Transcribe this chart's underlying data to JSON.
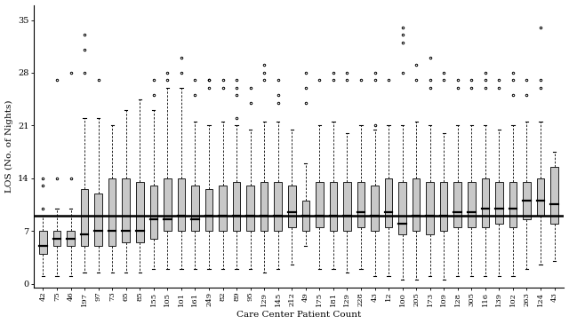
{
  "centers": [
    "42",
    "75",
    "46",
    "197",
    "97",
    "73",
    "65",
    "85",
    "155",
    "105",
    "101",
    "161",
    "249",
    "82",
    "89",
    "95",
    "129",
    "145",
    "212",
    "49",
    "175",
    "181",
    "129",
    "228",
    "43",
    "12",
    "100",
    "205",
    "173",
    "109",
    "128",
    "305",
    "116",
    "139",
    "102",
    "263",
    "124",
    "43"
  ],
  "global_median": 9.0,
  "box_data": [
    {
      "med": 5.0,
      "q1": 4.0,
      "q3": 7.0,
      "whislo": 1.0,
      "whishi": 9.0,
      "fliers": [
        10,
        13,
        14
      ]
    },
    {
      "med": 6.0,
      "q1": 5.0,
      "q3": 7.0,
      "whislo": 1.0,
      "whishi": 10.0,
      "fliers": [
        14,
        27
      ]
    },
    {
      "med": 6.0,
      "q1": 5.0,
      "q3": 7.0,
      "whislo": 1.0,
      "whishi": 10.0,
      "fliers": [
        14,
        28
      ]
    },
    {
      "med": 6.5,
      "q1": 5.0,
      "q3": 12.5,
      "whislo": 1.5,
      "whishi": 22.0,
      "fliers": [
        28,
        31,
        33
      ]
    },
    {
      "med": 7.0,
      "q1": 5.0,
      "q3": 12.0,
      "whislo": 1.5,
      "whishi": 22.0,
      "fliers": [
        27
      ]
    },
    {
      "med": 7.0,
      "q1": 5.0,
      "q3": 14.0,
      "whislo": 1.5,
      "whishi": 21.0,
      "fliers": []
    },
    {
      "med": 7.0,
      "q1": 5.5,
      "q3": 14.0,
      "whislo": 1.5,
      "whishi": 23.0,
      "fliers": []
    },
    {
      "med": 7.0,
      "q1": 5.5,
      "q3": 13.5,
      "whislo": 1.5,
      "whishi": 24.5,
      "fliers": []
    },
    {
      "med": 8.5,
      "q1": 6.0,
      "q3": 13.0,
      "whislo": 2.0,
      "whishi": 23.0,
      "fliers": [
        25,
        27
      ]
    },
    {
      "med": 8.5,
      "q1": 7.0,
      "q3": 14.0,
      "whislo": 2.0,
      "whishi": 26.0,
      "fliers": [
        27,
        28
      ]
    },
    {
      "med": 9.0,
      "q1": 7.0,
      "q3": 14.0,
      "whislo": 2.0,
      "whishi": 26.0,
      "fliers": [
        28,
        30
      ]
    },
    {
      "med": 8.5,
      "q1": 7.0,
      "q3": 13.0,
      "whislo": 2.0,
      "whishi": 21.5,
      "fliers": [
        25,
        27
      ]
    },
    {
      "med": 9.0,
      "q1": 7.0,
      "q3": 12.5,
      "whislo": 2.0,
      "whishi": 21.0,
      "fliers": [
        26,
        27,
        27
      ]
    },
    {
      "med": 9.0,
      "q1": 7.0,
      "q3": 13.0,
      "whislo": 2.0,
      "whishi": 21.5,
      "fliers": [
        26,
        27
      ]
    },
    {
      "med": 9.0,
      "q1": 7.0,
      "q3": 13.5,
      "whislo": 2.0,
      "whishi": 21.0,
      "fliers": [
        22,
        25,
        26,
        27
      ]
    },
    {
      "med": 9.0,
      "q1": 7.0,
      "q3": 13.0,
      "whislo": 2.0,
      "whishi": 20.5,
      "fliers": [
        24,
        26
      ]
    },
    {
      "med": 9.0,
      "q1": 7.0,
      "q3": 13.5,
      "whislo": 1.5,
      "whishi": 21.5,
      "fliers": [
        27,
        28,
        29
      ]
    },
    {
      "med": 9.0,
      "q1": 7.0,
      "q3": 13.5,
      "whislo": 2.0,
      "whishi": 21.5,
      "fliers": [
        24,
        25,
        27
      ]
    },
    {
      "med": 9.5,
      "q1": 7.5,
      "q3": 13.0,
      "whislo": 2.5,
      "whishi": 20.5,
      "fliers": []
    },
    {
      "med": 9.0,
      "q1": 7.0,
      "q3": 11.0,
      "whislo": 5.0,
      "whishi": 16.0,
      "fliers": [
        24,
        26,
        28
      ]
    },
    {
      "med": 9.0,
      "q1": 7.5,
      "q3": 13.5,
      "whislo": 2.0,
      "whishi": 21.0,
      "fliers": [
        27
      ]
    },
    {
      "med": 9.0,
      "q1": 7.0,
      "q3": 13.5,
      "whislo": 2.0,
      "whishi": 21.5,
      "fliers": [
        27,
        28
      ]
    },
    {
      "med": 9.0,
      "q1": 7.0,
      "q3": 13.5,
      "whislo": 1.5,
      "whishi": 20.0,
      "fliers": [
        27,
        28
      ]
    },
    {
      "med": 9.5,
      "q1": 7.5,
      "q3": 13.5,
      "whislo": 2.0,
      "whishi": 21.0,
      "fliers": [
        27
      ]
    },
    {
      "med": 9.0,
      "q1": 7.0,
      "q3": 13.0,
      "whislo": 1.0,
      "whishi": 20.5,
      "fliers": [
        21,
        27,
        28
      ]
    },
    {
      "med": 9.5,
      "q1": 7.5,
      "q3": 14.0,
      "whislo": 1.0,
      "whishi": 21.0,
      "fliers": [
        27
      ]
    },
    {
      "med": 8.0,
      "q1": 6.5,
      "q3": 13.5,
      "whislo": 0.5,
      "whishi": 21.0,
      "fliers": [
        28,
        32,
        33,
        34
      ]
    },
    {
      "med": 9.0,
      "q1": 7.0,
      "q3": 14.0,
      "whislo": 0.5,
      "whishi": 21.5,
      "fliers": [
        27,
        29
      ]
    },
    {
      "med": 9.0,
      "q1": 6.5,
      "q3": 13.5,
      "whislo": 1.0,
      "whishi": 21.0,
      "fliers": [
        26,
        27,
        30
      ]
    },
    {
      "med": 9.0,
      "q1": 7.0,
      "q3": 13.5,
      "whislo": 0.5,
      "whishi": 20.0,
      "fliers": [
        27,
        28
      ]
    },
    {
      "med": 9.5,
      "q1": 7.5,
      "q3": 13.5,
      "whislo": 1.0,
      "whishi": 21.0,
      "fliers": [
        26,
        27
      ]
    },
    {
      "med": 9.5,
      "q1": 7.5,
      "q3": 13.5,
      "whislo": 1.0,
      "whishi": 21.0,
      "fliers": [
        26,
        27
      ]
    },
    {
      "med": 10.0,
      "q1": 7.5,
      "q3": 14.0,
      "whislo": 1.0,
      "whishi": 21.0,
      "fliers": [
        26,
        27,
        28
      ]
    },
    {
      "med": 10.0,
      "q1": 8.0,
      "q3": 13.5,
      "whislo": 1.0,
      "whishi": 20.5,
      "fliers": [
        26,
        27
      ]
    },
    {
      "med": 10.0,
      "q1": 7.5,
      "q3": 13.5,
      "whislo": 1.0,
      "whishi": 21.0,
      "fliers": [
        25,
        27,
        28
      ]
    },
    {
      "med": 11.0,
      "q1": 8.5,
      "q3": 13.5,
      "whislo": 2.0,
      "whishi": 21.5,
      "fliers": [
        25,
        27
      ]
    },
    {
      "med": 11.0,
      "q1": 9.0,
      "q3": 14.0,
      "whislo": 2.5,
      "whishi": 21.5,
      "fliers": [
        26,
        27,
        34
      ]
    },
    {
      "med": 10.5,
      "q1": 8.0,
      "q3": 15.5,
      "whislo": 3.0,
      "whishi": 17.5,
      "fliers": []
    }
  ],
  "ylabel": "LOS (No. of Nights)",
  "xlabel": "Care Center Patient Count",
  "ylim": [
    -0.5,
    37
  ],
  "yticks": [
    0,
    7,
    14,
    21,
    28,
    35
  ],
  "box_color": "#c8c8c8",
  "median_line_color": "#000000",
  "global_median_color": "#000000",
  "whisker_color": "#000000",
  "flier_color": "#000000",
  "background_color": "#ffffff",
  "figsize": [
    6.4,
    3.65
  ],
  "dpi": 100
}
